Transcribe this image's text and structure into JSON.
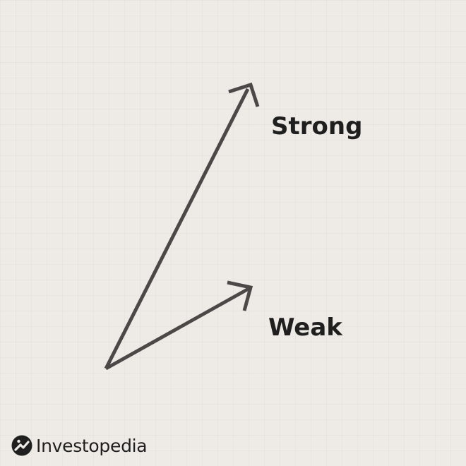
{
  "colors": {
    "background": "#eeebe6",
    "arrow": "#4a4948",
    "text": "#1f1f1f"
  },
  "arrows": [
    {
      "label": "Strong"
    },
    {
      "label": "Weak"
    }
  ],
  "brand": {
    "name": "Investopedia",
    "icon": "investopedia-logo-icon"
  }
}
